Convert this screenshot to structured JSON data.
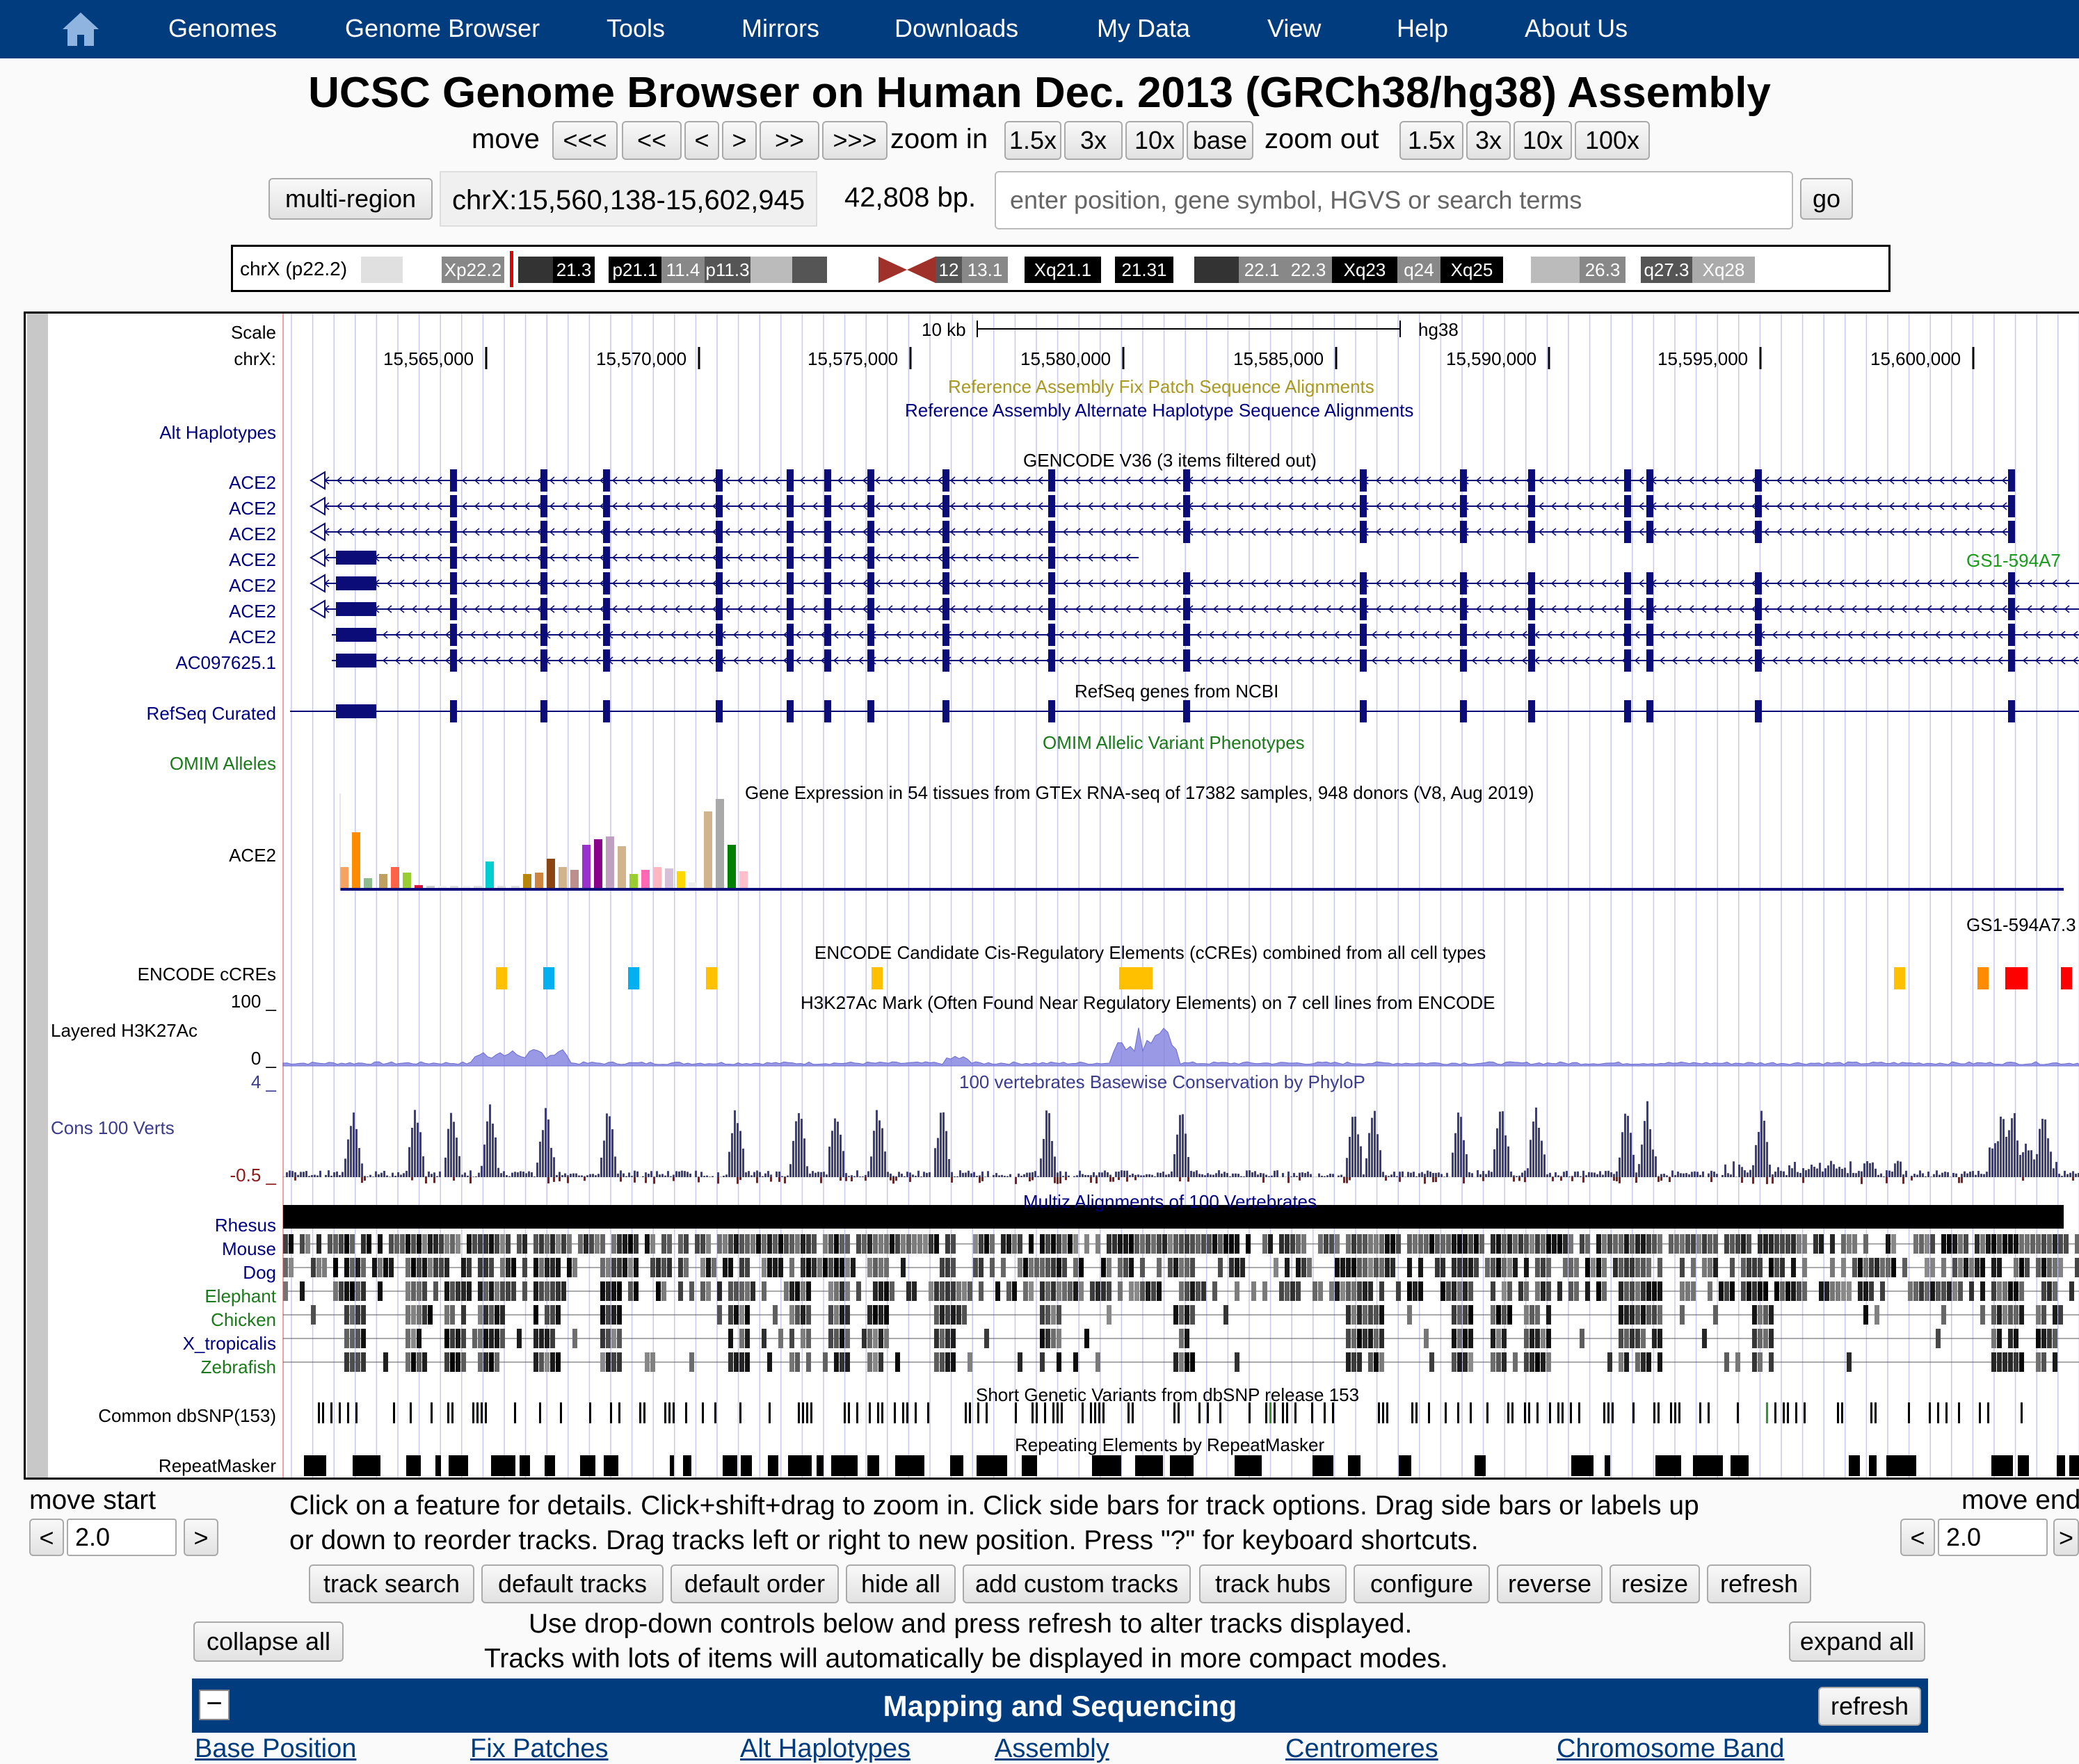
{
  "nav": {
    "home_icon": "house-icon",
    "items": [
      "Genomes",
      "Genome Browser",
      "Tools",
      "Mirrors",
      "Downloads",
      "My Data",
      "View",
      "Help",
      "About Us"
    ]
  },
  "title": "UCSC Genome Browser on Human Dec. 2013 (GRCh38/hg38) Assembly",
  "controls": {
    "move_label": "move",
    "move_buttons": [
      "<<<",
      "<<",
      "<",
      ">",
      ">>",
      ">>>"
    ],
    "zoom_in_label": "zoom in",
    "zoom_in_buttons": [
      "1.5x",
      "3x",
      "10x",
      "base"
    ],
    "zoom_out_label": "zoom out",
    "zoom_out_buttons": [
      "1.5x",
      "3x",
      "10x",
      "100x"
    ],
    "multi_region": "multi-region",
    "position": "chrX:15,560,138-15,602,945",
    "size": "42,808 bp.",
    "search_placeholder": "enter position, gene symbol, HGVS or search terms",
    "go": "go"
  },
  "ideogram": {
    "chrom_label": "chrX (p22.2)",
    "bands": [
      "Xp22.2",
      "21.3",
      "p21.1",
      "11.4",
      "p11.3",
      "12",
      "13.1",
      "Xq21.1",
      "21.31",
      "22.1",
      "22.3",
      "Xq23",
      "q24",
      "Xq25",
      "26.3",
      "q27.3",
      "Xq28"
    ]
  },
  "tracks": {
    "scale_label": "Scale",
    "chr_label": "chrX:",
    "scale_bar": "10 kb",
    "assembly": "hg38",
    "positions": [
      "15,565,000",
      "15,570,000",
      "15,575,000",
      "15,580,000",
      "15,585,000",
      "15,590,000",
      "15,595,000",
      "15,600,000"
    ],
    "fix_patch_title": "Reference Assembly Fix Patch Sequence Alignments",
    "alt_hap_title": "Reference Assembly Alternate Haplotype Sequence Alignments",
    "alt_hap_label": "Alt Haplotypes",
    "gencode_title": "GENCODE V36 (3 items filtered out)",
    "gencode_genes": [
      "ACE2",
      "ACE2",
      "ACE2",
      "ACE2",
      "ACE2",
      "ACE2",
      "ACE2",
      "AC097625.1"
    ],
    "gs1_label": "GS1-594A7",
    "gs1_label2": "GS1-594A7.3",
    "refseq_title": "RefSeq genes from NCBI",
    "refseq_label": "RefSeq Curated",
    "omim_title": "OMIM Allelic Variant Phenotypes",
    "omim_label": "OMIM Alleles",
    "gtex_title": "Gene Expression in 54 tissues from GTEx RNA-seq of 17382 samples, 948 donors (V8, Aug 2019)",
    "gtex_label": "ACE2",
    "ccre_title": "ENCODE Candidate Cis-Regulatory Elements (cCREs) combined from all cell types",
    "ccre_label": "ENCODE cCREs",
    "h3k_title": "H3K27Ac Mark (Often Found Near Regulatory Elements) on 7 cell lines from ENCODE",
    "h3k_label": "Layered H3K27Ac",
    "h3k_max": "100 _",
    "h3k_min": "0 _",
    "cons_title": "100 vertebrates Basewise Conservation by PhyloP",
    "cons_label": "Cons 100 Verts",
    "cons_max": "4 _",
    "cons_min": "-0.5 _",
    "multiz_title": "Multiz Alignments of 100 Vertebrates",
    "species": [
      "Rhesus",
      "Mouse",
      "Dog",
      "Elephant",
      "Chicken",
      "X_tropicalis",
      "Zebrafish"
    ],
    "snp_title": "Short Genetic Variants from dbSNP release 153",
    "snp_label": "Common dbSNP(153)",
    "rmsk_title": "Repeating Elements by RepeatMasker",
    "rmsk_label": "RepeatMasker"
  },
  "colors": {
    "nav": "#003c7e",
    "gene": "#0c0c78",
    "track_label": "#000080",
    "omim": "#1a7a1a",
    "fixpatch": "#a89a20",
    "cons": "#3c3c8c"
  },
  "bottom": {
    "move_start": "move start",
    "move_end": "move end",
    "move_start_value": "2.0",
    "move_end_value": "2.0",
    "left_arrow": "<",
    "right_arrow": ">",
    "help1": "Click on a feature for details. Click+shift+drag to zoom in. Click side bars for track options. Drag side bars or labels up",
    "help2": "or down to reorder tracks. Drag tracks left or right to new position. Press \"?\" for keyboard shortcuts.",
    "buttons": [
      "track search",
      "default tracks",
      "default order",
      "hide all",
      "add custom tracks",
      "track hubs",
      "configure",
      "reverse",
      "resize",
      "refresh"
    ],
    "collapse_all": "collapse all",
    "expand_all": "expand all",
    "info1": "Use drop-down controls below and press refresh to alter tracks displayed.",
    "info2": "Tracks with lots of items will automatically be displayed in more compact modes.",
    "group_title": "Mapping and Sequencing",
    "group_minus": "−",
    "group_refresh": "refresh",
    "group_tracks": [
      "Base Position",
      "Fix Patches",
      "Alt Haplotypes",
      "Assembly",
      "Centromeres",
      "Chromosome Band"
    ]
  }
}
